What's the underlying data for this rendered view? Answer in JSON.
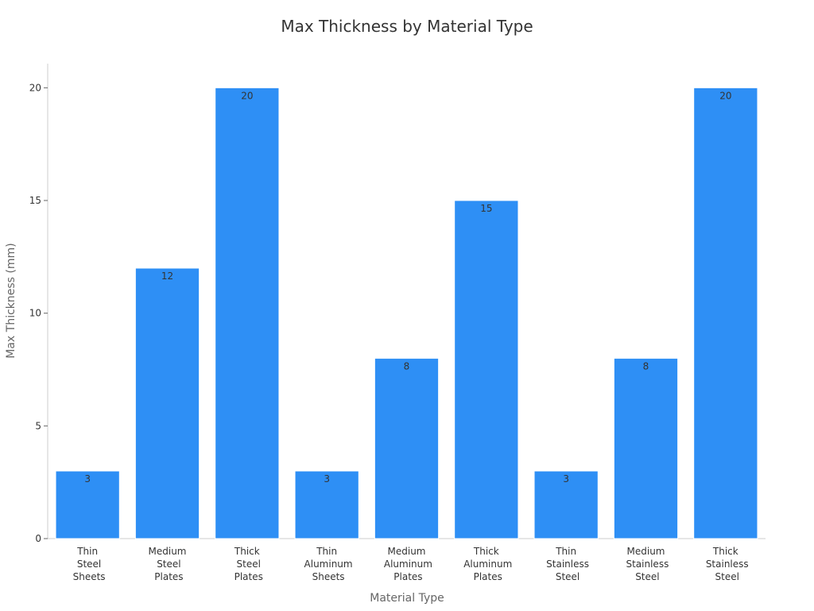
{
  "chart_data": {
    "type": "bar",
    "title": "Max Thickness by Material Type",
    "x_label": "Material Type",
    "y_label": "Max Thickness (mm)",
    "categories": [
      "Thin Steel Sheets",
      "Medium Steel Plates",
      "Thick Steel Plates",
      "Thin Aluminum Sheets",
      "Medium Aluminum Plates",
      "Thick Aluminum Plates",
      "Thin Stainless Steel",
      "Medium Stainless Steel",
      "Thick Stainless Steel"
    ],
    "values": [
      3,
      12,
      20,
      3,
      8,
      15,
      3,
      8,
      20
    ],
    "color": "#2e8ff5",
    "ylim": [
      0,
      21
    ],
    "yticks": [
      0,
      5,
      10,
      15,
      20
    ],
    "grid": false
  }
}
